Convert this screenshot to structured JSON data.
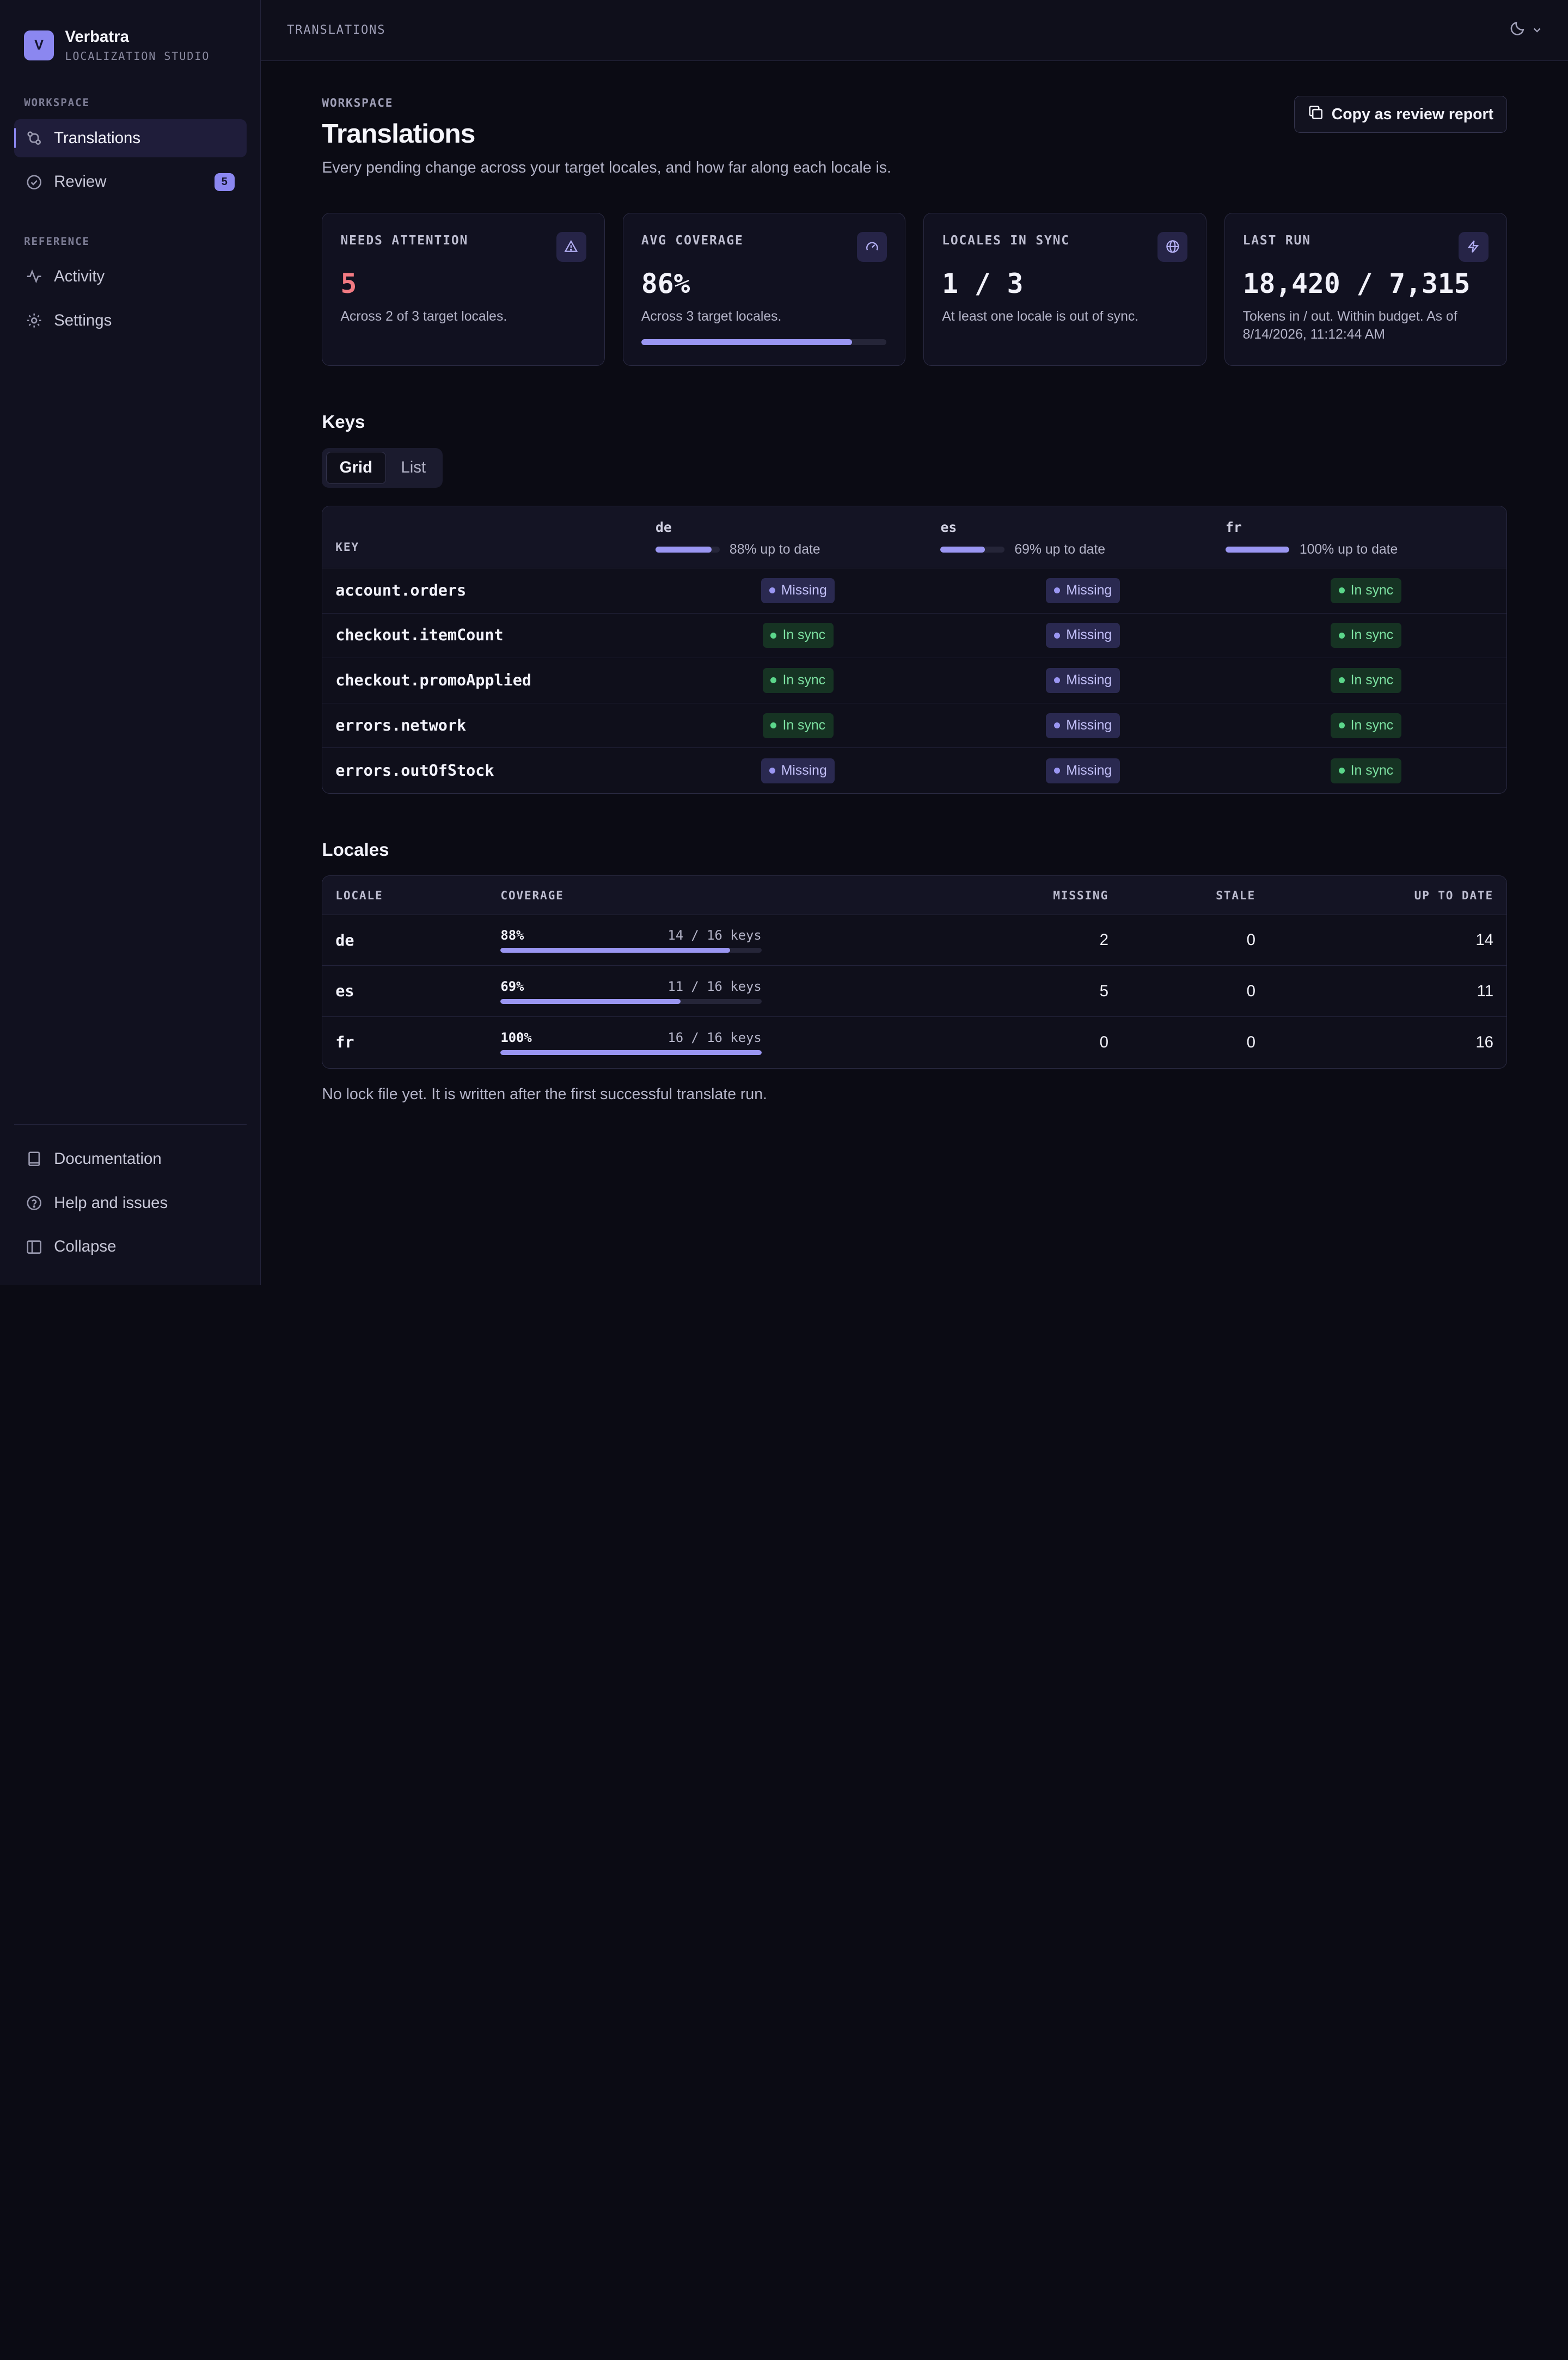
{
  "brand": {
    "name": "Verbatra",
    "subtitle": "LOCALIZATION STUDIO",
    "logo_letter": "V",
    "accent": "#8b87f0"
  },
  "sidebar": {
    "workspace_label": "WORKSPACE",
    "reference_label": "REFERENCE",
    "items": [
      {
        "label": "Translations",
        "icon": "git-compare-icon",
        "active": true
      },
      {
        "label": "Review",
        "icon": "check-circle-icon",
        "badge": "5"
      },
      {
        "label": "Activity",
        "icon": "activity-icon"
      },
      {
        "label": "Settings",
        "icon": "gear-icon"
      }
    ],
    "bottom": [
      {
        "label": "Documentation",
        "icon": "book-icon"
      },
      {
        "label": "Help and issues",
        "icon": "help-circle-icon"
      },
      {
        "label": "Collapse",
        "icon": "panel-left-icon"
      }
    ]
  },
  "topbar": {
    "title": "TRANSLATIONS",
    "theme_icon": "moon-icon"
  },
  "page": {
    "eyebrow": "WORKSPACE",
    "title": "Translations",
    "description": "Every pending change across your target locales, and how far along each locale is.",
    "copy_button": "Copy as review report"
  },
  "stats": [
    {
      "label": "NEEDS ATTENTION",
      "value": "5",
      "note": "Across 2 of 3 target locales.",
      "icon": "alert-triangle-icon"
    },
    {
      "label": "AVG COVERAGE",
      "value": "86%",
      "note": "Across 3 target locales.",
      "icon": "gauge-icon",
      "progress": 86
    },
    {
      "label": "LOCALES IN SYNC",
      "value": "1 / 3",
      "note": "At least one locale is out of sync.",
      "icon": "globe-icon"
    },
    {
      "label": "LAST RUN",
      "value": "18,420 / 7,315",
      "note": "Tokens in / out. Within budget. As of 8/14/2026, 11:12:44 AM",
      "icon": "zap-icon"
    }
  ],
  "keys": {
    "title": "Keys",
    "view_options": [
      "Grid",
      "List"
    ],
    "selected_view": "Grid",
    "key_header": "KEY",
    "locales": [
      {
        "code": "de",
        "pct": 88,
        "label": "88% up to date"
      },
      {
        "code": "es",
        "pct": 69,
        "label": "69% up to date"
      },
      {
        "code": "fr",
        "pct": 100,
        "label": "100% up to date"
      }
    ],
    "rows": [
      {
        "key": "account.orders",
        "status": [
          "Missing",
          "Missing",
          "In sync"
        ]
      },
      {
        "key": "checkout.itemCount",
        "status": [
          "In sync",
          "Missing",
          "In sync"
        ]
      },
      {
        "key": "checkout.promoApplied",
        "status": [
          "In sync",
          "Missing",
          "In sync"
        ]
      },
      {
        "key": "errors.network",
        "status": [
          "In sync",
          "Missing",
          "In sync"
        ]
      },
      {
        "key": "errors.outOfStock",
        "status": [
          "Missing",
          "Missing",
          "In sync"
        ]
      }
    ]
  },
  "locales": {
    "title": "Locales",
    "headers": {
      "locale": "LOCALE",
      "coverage": "COVERAGE",
      "missing": "MISSING",
      "stale": "STALE",
      "up_to_date": "UP TO DATE"
    },
    "rows": [
      {
        "locale": "de",
        "pct_label": "88%",
        "pct": 88,
        "keys": "14 / 16 keys",
        "missing": "2",
        "stale": "0",
        "up_to_date": "14"
      },
      {
        "locale": "es",
        "pct_label": "69%",
        "pct": 69,
        "keys": "11 / 16 keys",
        "missing": "5",
        "stale": "0",
        "up_to_date": "11"
      },
      {
        "locale": "fr",
        "pct_label": "100%",
        "pct": 100,
        "keys": "16 / 16 keys",
        "missing": "0",
        "stale": "0",
        "up_to_date": "16"
      }
    ],
    "note": "No lock file yet. It is written after the first successful translate run."
  }
}
